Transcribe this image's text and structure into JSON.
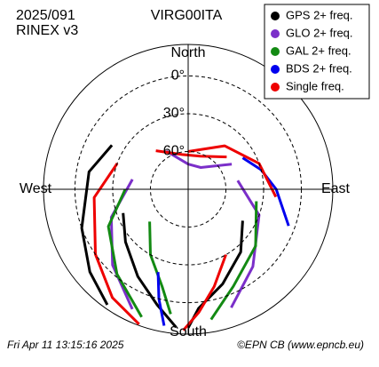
{
  "chart_data": {
    "type": "skyplot",
    "title": "VIRG00ITA",
    "date": "2025/091",
    "format": "RINEX v3",
    "footer_left": "Fri Apr 11 13:15:16 2025",
    "footer_right": "©EPN CB (www.epncb.eu)",
    "directions": {
      "north": "North",
      "south": "South",
      "west": "West",
      "east": "East"
    },
    "rlim": [
      90,
      -25
    ],
    "rticks": [
      {
        "value": 0,
        "label": "0°"
      },
      {
        "value": 30,
        "label": "30°"
      },
      {
        "value": 60,
        "label": "60°"
      }
    ],
    "legend": "upper right",
    "series": [
      {
        "name": "GPS 2+ freq.",
        "color": "#000000",
        "tracks": [
          {
            "az": [
              250,
              230,
              210,
              195,
              185
            ],
            "el": [
              35,
              25,
              10,
              -5,
              -20
            ]
          },
          {
            "az": [
              120,
              140,
              160,
              175,
              180
            ],
            "el": [
              40,
              25,
              10,
              -5,
              -20
            ]
          },
          {
            "az": [
              300,
              280,
              250,
              230,
              215
            ],
            "el": [
              20,
              10,
              0,
              -12,
              -22
            ]
          }
        ]
      },
      {
        "name": "GLO 2+ freq.",
        "color": "#7b2fc9",
        "tracks": [
          {
            "az": [
              330,
              0,
              30,
              60
            ],
            "el": [
              55,
              70,
              70,
              50
            ]
          },
          {
            "az": [
              280,
              250,
              225,
              205
            ],
            "el": [
              45,
              25,
              5,
              -15
            ]
          },
          {
            "az": [
              80,
              110,
              140,
              160
            ],
            "el": [
              50,
              30,
              10,
              -10
            ]
          }
        ]
      },
      {
        "name": "GAL 2+ freq.",
        "color": "#138a13",
        "tracks": [
          {
            "az": [
              270,
              245,
              220,
              200
            ],
            "el": [
              40,
              20,
              2,
              -18
            ]
          },
          {
            "az": [
              100,
              130,
              155,
              170
            ],
            "el": [
              35,
              20,
              5,
              -15
            ]
          },
          {
            "az": [
              230,
              210,
              195,
              188
            ],
            "el": [
              50,
              30,
              10,
              -10
            ]
          }
        ]
      },
      {
        "name": "BDS 2+ freq.",
        "color": "#0000ee",
        "tracks": [
          {
            "az": [
              60,
              75,
              90,
              110
            ],
            "el": [
              40,
              30,
              20,
              5
            ]
          },
          {
            "az": [
              200,
              195,
              190
            ],
            "el": [
              20,
              0,
              -20
            ]
          }
        ]
      },
      {
        "name": "Single freq.",
        "color": "#ee0000",
        "tracks": [
          {
            "az": [
              0,
              40,
              70,
              95
            ],
            "el": [
              60,
              45,
              30,
              20
            ]
          },
          {
            "az": [
              290,
              265,
              235,
              215,
              200
            ],
            "el": [
              30,
              15,
              0,
              -15,
              -24
            ]
          },
          {
            "az": [
              150,
              165,
              175,
              182
            ],
            "el": [
              30,
              10,
              -8,
              -22
            ]
          },
          {
            "az": [
              320,
              350,
              20,
              50
            ],
            "el": [
              50,
              62,
              62,
              50
            ]
          }
        ]
      }
    ]
  }
}
